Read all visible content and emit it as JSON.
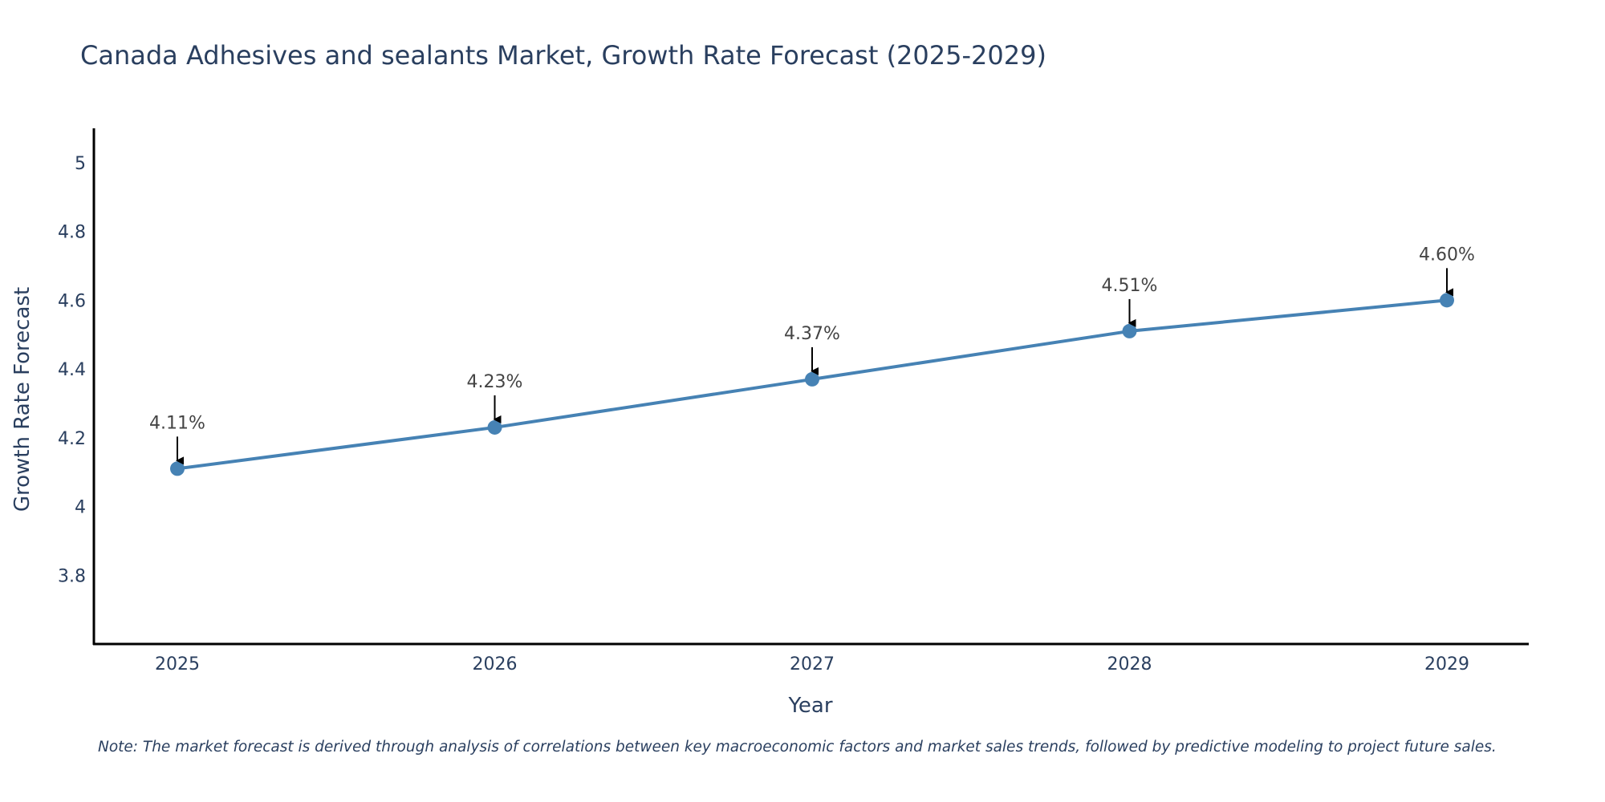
{
  "chart_data": {
    "type": "line",
    "title": "Canada Adhesives and sealants Market, Growth Rate Forecast (2025-2029)",
    "xlabel": "Year",
    "ylabel": "Growth Rate Forecast",
    "categories": [
      "2025",
      "2026",
      "2027",
      "2028",
      "2029"
    ],
    "series": [
      {
        "name": "Growth Rate Forecast",
        "values": [
          4.11,
          4.23,
          4.37,
          4.51,
          4.6
        ],
        "labels": [
          "4.11%",
          "4.23%",
          "4.37%",
          "4.51%",
          "4.60%"
        ]
      }
    ],
    "ylim": [
      3.6,
      5.1
    ],
    "yticks": [
      3.8,
      4,
      4.2,
      4.4,
      4.6,
      4.8,
      5
    ],
    "ytick_labels": [
      "3.8",
      "4",
      "4.2",
      "4.4",
      "4.6",
      "4.8",
      "5"
    ],
    "grid": false,
    "colors": {
      "line": "#4682b4",
      "axis": "#000000",
      "text": "#2a3f5f",
      "label": "#444444"
    },
    "note": "Note: The market forecast is derived through analysis of correlations between key macroeconomic factors and market sales trends, followed by predictive modeling to project future sales."
  }
}
